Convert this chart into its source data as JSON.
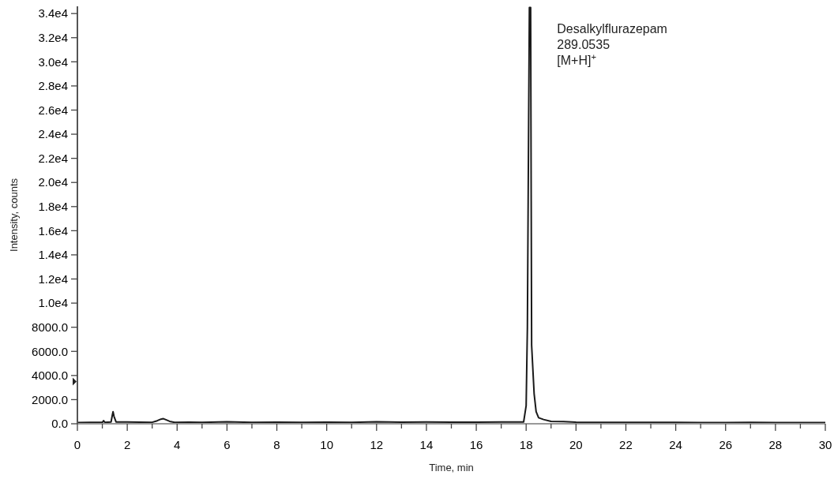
{
  "chart_data": {
    "type": "line",
    "xlabel": "Time, min",
    "ylabel": "Intensity, counts",
    "annotations": [
      {
        "text": "Desalkylflurazepam\n289.0535\n[M+H]$^{+}$",
        "x": 18.13,
        "y": 34500
      }
    ],
    "series": [
      {
        "color": "#1a1a1a",
        "x": [
          0,
          0.5,
          1.0,
          1.05,
          1.1,
          1.35,
          1.4,
          1.43,
          1.47,
          1.55,
          2,
          2.5,
          3,
          3.2,
          3.35,
          3.45,
          3.55,
          3.7,
          3.9,
          4.5,
          5,
          6,
          7,
          8,
          9,
          10,
          11,
          12,
          13,
          14,
          15,
          16,
          17,
          17.9,
          18.0,
          18.05,
          18.1,
          18.13,
          18.18,
          18.22,
          18.27,
          18.32,
          18.4,
          18.5,
          18.7,
          19,
          19.5,
          20,
          21,
          22,
          23,
          24,
          25,
          26,
          27,
          28,
          29,
          30
        ],
        "values": [
          100,
          120,
          110,
          250,
          120,
          150,
          700,
          1000,
          600,
          150,
          150,
          130,
          120,
          250,
          380,
          420,
          330,
          200,
          120,
          130,
          120,
          160,
          120,
          130,
          120,
          130,
          120,
          160,
          130,
          150,
          130,
          130,
          140,
          150,
          1500,
          8000,
          25000,
          34500,
          34500,
          6500,
          4500,
          2500,
          1000,
          500,
          350,
          200,
          180,
          130,
          120,
          120,
          110,
          110,
          100,
          100,
          110,
          100,
          100,
          100
        ]
      }
    ],
    "xlim": [
      0,
      30
    ],
    "xticks": [
      0,
      {
        "value": 1,
        "label": null
      },
      2,
      {
        "value": 3,
        "label": null
      },
      4,
      {
        "value": 5,
        "label": null
      },
      6,
      {
        "value": 7,
        "label": null
      },
      8,
      {
        "value": 9,
        "label": null
      },
      10,
      {
        "value": 11,
        "label": null
      },
      12,
      {
        "value": 13,
        "label": null
      },
      14,
      {
        "value": 15,
        "label": null
      },
      16,
      {
        "value": 17,
        "label": null
      },
      18,
      {
        "value": 19,
        "label": null
      },
      20,
      {
        "value": 21,
        "label": null
      },
      22,
      {
        "value": 23,
        "label": null
      },
      24,
      {
        "value": 25,
        "label": null
      },
      26,
      {
        "value": 27,
        "label": null
      },
      28,
      {
        "value": 29,
        "label": null
      },
      30
    ],
    "ylim": [
      0,
      34600
    ],
    "yticks": [
      {
        "value": 0,
        "label": "0.0"
      },
      {
        "value": 2000,
        "label": "2000.0"
      },
      {
        "value": 4000,
        "label": "4000.0"
      },
      {
        "value": 6000,
        "label": "6000.0"
      },
      {
        "value": 8000,
        "label": "8000.0"
      },
      {
        "value": 10000,
        "label": "1.0e4"
      },
      {
        "value": 12000,
        "label": "1.2e4"
      },
      {
        "value": 14000,
        "label": "1.4e4"
      },
      {
        "value": 16000,
        "label": "1.6e4"
      },
      {
        "value": 18000,
        "label": "1.8e4"
      },
      {
        "value": 20000,
        "label": "2.0e4"
      },
      {
        "value": 22000,
        "label": "2.2e4"
      },
      {
        "value": 24000,
        "label": "2.4e4"
      },
      {
        "value": 26000,
        "label": "2.6e4"
      },
      {
        "value": 28000,
        "label": "2.8e4"
      },
      {
        "value": 30000,
        "label": "3.0e4"
      },
      {
        "value": 32000,
        "label": "3.2e4"
      },
      {
        "value": 34000,
        "label": "3.4e4"
      }
    ],
    "grid": false,
    "marker": "none",
    "line_style": "solid"
  }
}
